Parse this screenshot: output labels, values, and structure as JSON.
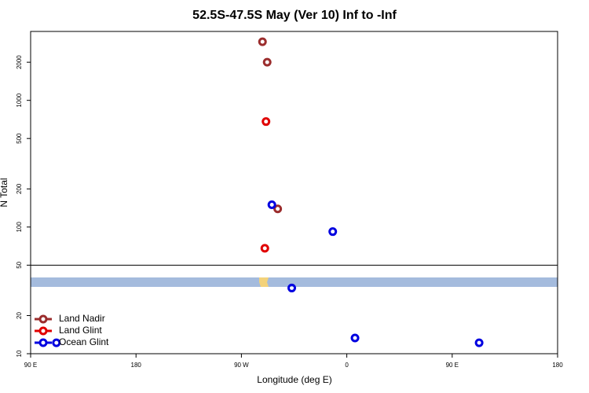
{
  "chart_data": {
    "type": "scatter",
    "title": "52.5S-47.5S May (Ver 10)   Inf to -Inf",
    "x_label": "Longitude (deg E)",
    "y_label": "N Total",
    "xlim": [
      90,
      540
    ],
    "ylim": [
      10,
      3500
    ],
    "log_y": true,
    "xticks": [
      {
        "value": 90,
        "label": "90 E"
      },
      180,
      {
        "value": 270,
        "label": "90 W"
      },
      {
        "value": 360,
        "label": "0"
      },
      {
        "value": 450,
        "label": "90 E"
      },
      {
        "value": 540,
        "label": "180"
      }
    ],
    "yticks": [
      10,
      20,
      50,
      100,
      200,
      500,
      1000,
      2000
    ],
    "hline": 50,
    "legend": "bottomleft",
    "series": [
      {
        "name": "Land Nadir",
        "color": "#9b2d2d",
        "x": [
          288,
          292,
          301
        ],
        "values": [
          2900,
          2000,
          139
        ]
      },
      {
        "name": "Land Glint",
        "color": "#e00000",
        "x": [
          291,
          290
        ],
        "values": [
          680,
          68
        ]
      },
      {
        "name": "Ocean Glint",
        "color": "#0000e0",
        "x": [
          296,
          348,
          313,
          367,
          473,
          112
        ],
        "values": [
          150,
          92,
          33,
          13.3,
          12.2,
          12.2
        ]
      }
    ]
  }
}
